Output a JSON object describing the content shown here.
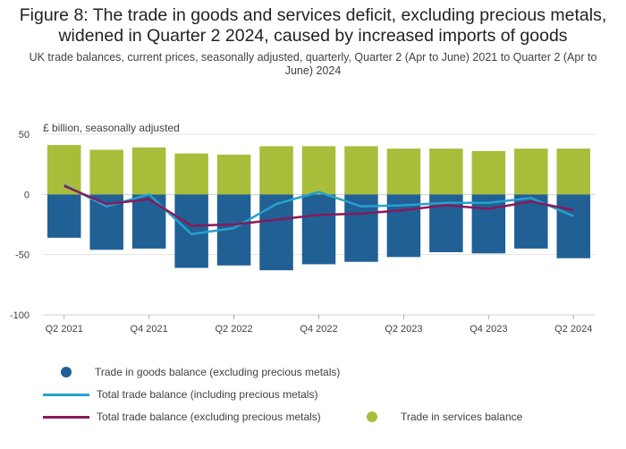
{
  "title_line1": "Figure 8: The trade in goods and services deficit, excluding precious metals,",
  "title_line2": "widened in Quarter 2 2024, caused by increased imports of goods",
  "subtitle": "UK trade balances, current prices, seasonally adjusted, quarterly, Quarter 2 (Apr to June) 2021 to Quarter 2 (Apr to June) 2024",
  "y_unit_label": "£ billion, seasonally adjusted",
  "colors": {
    "goods": "#206095",
    "services": "#a8bd3a",
    "total_incl": "#27a0cc",
    "total_excl": "#871a5b",
    "grid": "#e2e2e3",
    "text": "#414042"
  },
  "chart_data": {
    "type": "bar",
    "categories": [
      "Q2 2021",
      "Q3 2021",
      "Q4 2021",
      "Q1 2022",
      "Q2 2022",
      "Q3 2022",
      "Q4 2022",
      "Q1 2023",
      "Q2 2023",
      "Q3 2023",
      "Q4 2023",
      "Q1 2024",
      "Q2 2024"
    ],
    "x_tick_labels": [
      "Q2 2021",
      "",
      "Q4 2021",
      "",
      "Q2 2022",
      "",
      "Q4 2022",
      "",
      "Q2 2023",
      "",
      "Q4 2023",
      "",
      "Q2 2024"
    ],
    "y_ticks": [
      "50",
      "0",
      "-50",
      "-100"
    ],
    "y_tick_values": [
      50,
      0,
      -50,
      -100
    ],
    "ylim": [
      -100,
      50
    ],
    "grid": true,
    "legend_position": "bottom",
    "series": [
      {
        "name": "Trade in goods balance (excluding precious metals)",
        "kind": "bar",
        "values": [
          -36,
          -46,
          -45,
          -61,
          -59,
          -63,
          -58,
          -56,
          -52,
          -48,
          -49,
          -45,
          -53
        ]
      },
      {
        "name": "Trade in services balance",
        "kind": "bar",
        "values": [
          41,
          37,
          39,
          34,
          33,
          40,
          40,
          40,
          38,
          38,
          36,
          38,
          38
        ]
      },
      {
        "name": "Total trade balance (including precious metals)",
        "kind": "line",
        "values": [
          8,
          -10,
          0,
          -33,
          -28,
          -8,
          2,
          -10,
          -9,
          -7,
          -7,
          -3,
          -18
        ]
      },
      {
        "name": "Total trade balance (excluding precious metals)",
        "kind": "line",
        "values": [
          7,
          -8,
          -4,
          -26,
          -25,
          -21,
          -17,
          -16,
          -13,
          -9,
          -12,
          -6,
          -13
        ]
      }
    ]
  },
  "legend": {
    "goods": "Trade in goods balance (excluding precious metals)",
    "total_incl": "Total trade balance (including precious metals)",
    "total_excl": "Total trade balance (excluding precious metals)",
    "services": "Trade in services balance"
  }
}
